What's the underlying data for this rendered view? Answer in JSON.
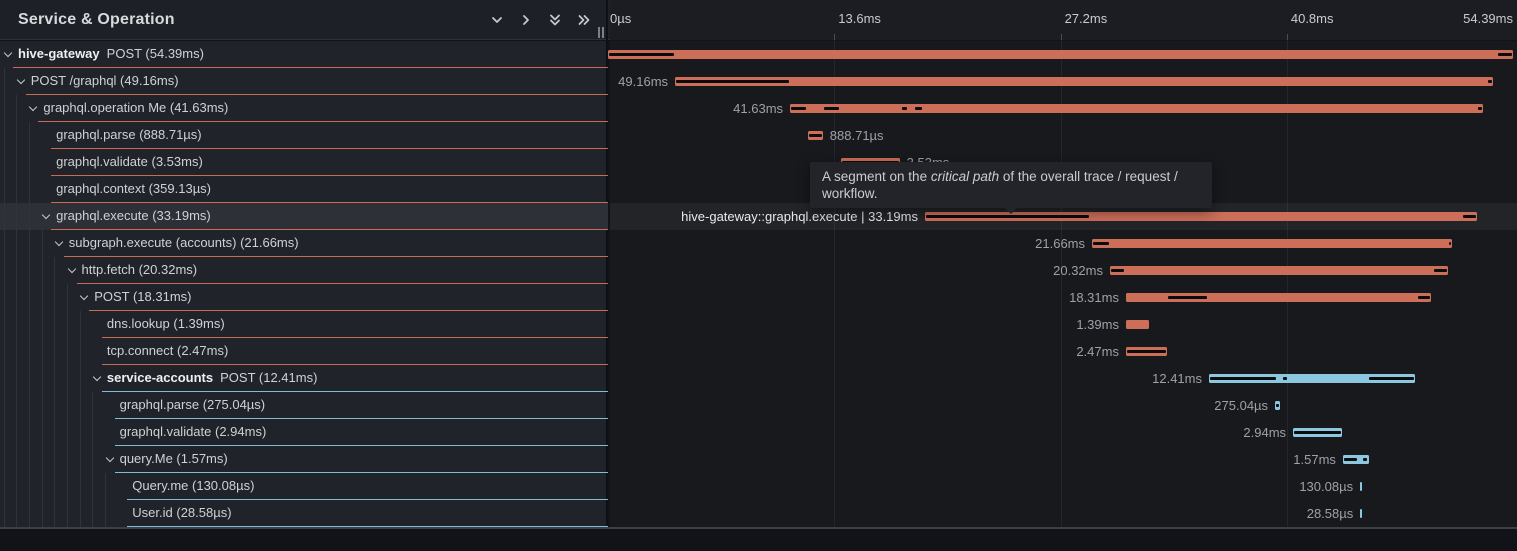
{
  "header": {
    "title": "Service & Operation",
    "icons": [
      "chevron-down",
      "chevron-right",
      "double-chevron-down",
      "double-chevron-right"
    ],
    "resize_handle": "drag-divider",
    "timeline_ticks": [
      {
        "label": "0µs",
        "ms": 0,
        "align": "left"
      },
      {
        "label": "13.6ms",
        "ms": 13.6,
        "align": "left"
      },
      {
        "label": "27.2ms",
        "ms": 27.2,
        "align": "left"
      },
      {
        "label": "40.8ms",
        "ms": 40.8,
        "align": "left"
      },
      {
        "label": "54.39ms",
        "ms": 54.39,
        "align": "right"
      }
    ]
  },
  "tooltip": {
    "text_before": "A segment on the ",
    "italic": "critical path",
    "text_after": " of the overall trace / request / workflow."
  },
  "colors": {
    "salmon": "#cd6e58",
    "blue": "#8cc7e0",
    "underline_salmon": "#c96b55",
    "underline_blue": "#7fbcd6",
    "critical_path": "#0b0c0e"
  },
  "trace": {
    "total_ms": 54.39,
    "rows": [
      {
        "service": "hive-gateway",
        "label": "POST (54.39ms)",
        "depth": 0,
        "has_children": true,
        "color": "salmon",
        "start": 0,
        "dur": 54.39,
        "bar_label": "",
        "label_side": "none",
        "critical": [
          [
            0,
            4.0
          ],
          [
            53.45,
            54.39
          ]
        ],
        "highlighted": false
      },
      {
        "service": "",
        "label": "POST /graphql (49.16ms)",
        "depth": 1,
        "has_children": true,
        "color": "salmon",
        "start": 4.03,
        "dur": 49.16,
        "bar_label": "49.16ms",
        "label_side": "left",
        "critical": [
          [
            4.03,
            10.94
          ],
          [
            52.8,
            53.19
          ]
        ],
        "highlighted": false
      },
      {
        "service": "",
        "label": "graphql.operation Me (41.63ms)",
        "depth": 2,
        "has_children": true,
        "color": "salmon",
        "start": 10.94,
        "dur": 41.63,
        "bar_label": "41.63ms",
        "label_side": "left",
        "critical": [
          [
            10.94,
            11.96
          ],
          [
            12.92,
            13.94
          ],
          [
            17.61,
            18.03
          ],
          [
            18.39,
            18.93
          ],
          [
            52.22,
            52.57
          ]
        ],
        "highlighted": false
      },
      {
        "service": "",
        "label": "graphql.parse (888.71µs)",
        "depth": 3,
        "has_children": false,
        "color": "salmon",
        "start": 12.02,
        "dur": 0.88871,
        "bar_label": "888.71µs",
        "label_side": "right",
        "critical": [
          [
            12.02,
            12.9
          ]
        ],
        "highlighted": false
      },
      {
        "service": "",
        "label": "graphql.validate (3.53ms)",
        "depth": 3,
        "has_children": false,
        "color": "salmon",
        "start": 14.0,
        "dur": 3.53,
        "bar_label": "3.53ms",
        "label_side": "right",
        "critical": [
          [
            14.0,
            17.53
          ]
        ],
        "highlighted": false
      },
      {
        "service": "",
        "label": "graphql.context (359.13µs)",
        "depth": 3,
        "has_children": false,
        "color": "salmon",
        "start": 17.61,
        "dur": 0.35913,
        "bar_label": "359.13µs",
        "label_side": "right",
        "critical": [
          [
            17.61,
            17.97
          ]
        ],
        "highlighted": false
      },
      {
        "service": "",
        "label": "graphql.execute (33.19ms)",
        "depth": 3,
        "has_children": true,
        "color": "salmon",
        "start": 19.05,
        "dur": 33.19,
        "bar_label": "hive-gateway::graphql.execute | 33.19ms",
        "label_side": "left",
        "critical": [
          [
            19.05,
            28.97
          ],
          [
            51.34,
            52.24
          ]
        ],
        "highlighted": true
      },
      {
        "service": "",
        "label": "subgraph.execute (accounts) (21.66ms)",
        "depth": 4,
        "has_children": true,
        "color": "salmon",
        "start": 29.09,
        "dur": 21.66,
        "bar_label": "21.66ms",
        "label_side": "left",
        "critical": [
          [
            29.09,
            30.17
          ],
          [
            50.5,
            50.75
          ]
        ],
        "highlighted": false
      },
      {
        "service": "",
        "label": "http.fetch (20.32ms)",
        "depth": 5,
        "has_children": true,
        "color": "salmon",
        "start": 30.17,
        "dur": 20.32,
        "bar_label": "20.32ms",
        "label_side": "left",
        "critical": [
          [
            30.17,
            31.07
          ],
          [
            49.58,
            50.49
          ]
        ],
        "highlighted": false
      },
      {
        "service": "",
        "label": "POST (18.31ms)",
        "depth": 6,
        "has_children": true,
        "color": "salmon",
        "start": 31.13,
        "dur": 18.31,
        "bar_label": "18.31ms",
        "label_side": "left",
        "critical": [
          [
            33.59,
            36.06
          ],
          [
            48.62,
            49.44
          ]
        ],
        "highlighted": false
      },
      {
        "service": "",
        "label": "dns.lookup (1.39ms)",
        "depth": 7,
        "has_children": false,
        "color": "salmon",
        "start": 31.13,
        "dur": 1.39,
        "bar_label": "1.39ms",
        "label_side": "left",
        "critical": [],
        "highlighted": false
      },
      {
        "service": "",
        "label": "tcp.connect (2.47ms)",
        "depth": 7,
        "has_children": false,
        "color": "salmon",
        "start": 31.13,
        "dur": 2.47,
        "bar_label": "2.47ms",
        "label_side": "left",
        "critical": [
          [
            31.13,
            33.6
          ]
        ],
        "highlighted": false
      },
      {
        "service": "service-accounts",
        "label": "POST (12.41ms)",
        "depth": 7,
        "has_children": true,
        "color": "blue",
        "start": 36.12,
        "dur": 12.41,
        "bar_label": "12.41ms",
        "label_side": "left",
        "critical": [
          [
            36.12,
            40.2
          ],
          [
            40.5,
            40.86
          ],
          [
            45.68,
            48.53
          ]
        ],
        "highlighted": false
      },
      {
        "service": "",
        "label": "graphql.parse (275.04µs)",
        "depth": 8,
        "has_children": false,
        "color": "blue",
        "start": 40.09,
        "dur": 0.27504,
        "bar_label": "275.04µs",
        "label_side": "left",
        "critical": [
          [
            40.09,
            40.36
          ]
        ],
        "highlighted": false
      },
      {
        "service": "",
        "label": "graphql.validate (2.94ms)",
        "depth": 8,
        "has_children": false,
        "color": "blue",
        "start": 41.17,
        "dur": 2.94,
        "bar_label": "2.94ms",
        "label_side": "left",
        "critical": [
          [
            41.17,
            44.11
          ]
        ],
        "highlighted": false
      },
      {
        "service": "",
        "label": "query.Me (1.57ms)",
        "depth": 8,
        "has_children": true,
        "color": "blue",
        "start": 44.17,
        "dur": 1.57,
        "bar_label": "1.57ms",
        "label_side": "left",
        "critical": [
          [
            44.2,
            45.05
          ],
          [
            45.3,
            45.68
          ]
        ],
        "highlighted": false
      },
      {
        "service": "",
        "label": "Query.me (130.08µs)",
        "depth": 9,
        "has_children": false,
        "color": "blue",
        "start": 45.2,
        "dur": 0.13008,
        "bar_label": "130.08µs",
        "label_side": "left",
        "critical": [],
        "highlighted": false
      },
      {
        "service": "",
        "label": "User.id (28.58µs)",
        "depth": 9,
        "has_children": false,
        "color": "blue",
        "start": 45.21,
        "dur": 0.02858,
        "bar_label": "28.58µs",
        "label_side": "left",
        "critical": [],
        "highlighted": false
      }
    ]
  }
}
